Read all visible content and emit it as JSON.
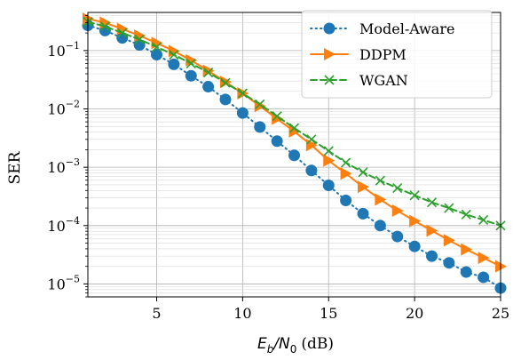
{
  "chart_data": {
    "type": "line",
    "title": "",
    "xlabel": "E_b/N_0 (dB)",
    "xlabel_parts": {
      "E": "E",
      "b": "b",
      "slash": "/",
      "N": "N",
      "zero": "0",
      "unit": "(dB)"
    },
    "ylabel": "SER",
    "xlim": [
      1,
      25
    ],
    "ylim": [
      6e-06,
      0.45
    ],
    "yscale": "log",
    "grid": true,
    "legend_position": "upper-right",
    "x_ticks": [
      5,
      10,
      15,
      20,
      25
    ],
    "y_ticks": [
      {
        "value": 0.1,
        "base": "10",
        "exp": "−1"
      },
      {
        "value": 0.01,
        "base": "10",
        "exp": "−2"
      },
      {
        "value": 0.001,
        "base": "10",
        "exp": "−3"
      },
      {
        "value": 0.0001,
        "base": "10",
        "exp": "−4"
      },
      {
        "value": 1e-05,
        "base": "10",
        "exp": "−5"
      }
    ],
    "x": [
      1,
      2,
      3,
      4,
      5,
      6,
      7,
      8,
      9,
      10,
      11,
      12,
      13,
      14,
      15,
      16,
      17,
      18,
      19,
      20,
      21,
      22,
      23,
      24,
      25
    ],
    "series": [
      {
        "name": "Model-Aware",
        "color": "#1f77b4",
        "line_style": "dotted",
        "marker": "circle",
        "values": [
          0.27,
          0.22,
          0.165,
          0.125,
          0.085,
          0.058,
          0.037,
          0.024,
          0.0145,
          0.0085,
          0.0049,
          0.0028,
          0.0016,
          0.00088,
          0.00049,
          0.00027,
          0.00016,
          0.0001,
          6.5e-05,
          4.4e-05,
          3e-05,
          2.3e-05,
          1.6e-05,
          1.3e-05,
          8.5e-06
        ]
      },
      {
        "name": "DDPM",
        "color": "#ff7f0e",
        "line_style": "solid",
        "marker": "triangle-right",
        "values": [
          0.35,
          0.3,
          0.235,
          0.18,
          0.135,
          0.098,
          0.068,
          0.045,
          0.029,
          0.0185,
          0.0112,
          0.0068,
          0.0041,
          0.0024,
          0.0013,
          0.00078,
          0.00046,
          0.00028,
          0.00018,
          0.00012,
          8.2e-05,
          5.6e-05,
          3.9e-05,
          2.8e-05,
          2e-05
        ]
      },
      {
        "name": "WGAN",
        "color": "#2ca02c",
        "line_style": "dashed",
        "marker": "x",
        "values": [
          0.31,
          0.26,
          0.2,
          0.155,
          0.115,
          0.085,
          0.06,
          0.042,
          0.028,
          0.0185,
          0.012,
          0.0075,
          0.0047,
          0.003,
          0.0019,
          0.0012,
          0.00082,
          0.00059,
          0.00044,
          0.00033,
          0.00025,
          0.0002,
          0.000155,
          0.000125,
          0.0001
        ]
      }
    ]
  }
}
